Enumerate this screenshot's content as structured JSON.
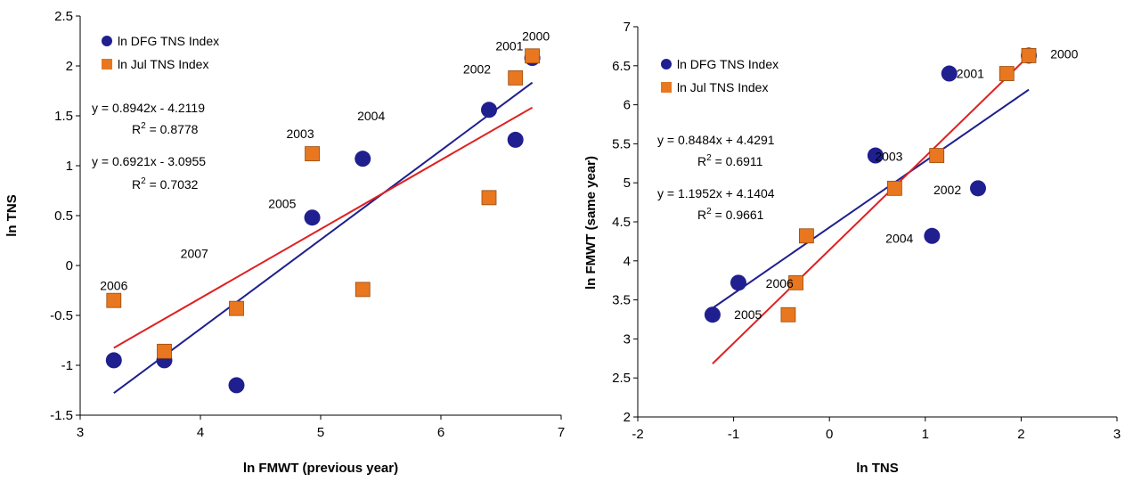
{
  "chart_data": [
    {
      "type": "scatter",
      "xlabel": "ln FMWT (previous year)",
      "ylabel": "ln TNS",
      "xlim": [
        3,
        7
      ],
      "ylim": [
        -1.5,
        2.5
      ],
      "xticks": [
        "3",
        "4",
        "5",
        "6",
        "7"
      ],
      "yticks": [
        "-1.5",
        "-1",
        "-0.5",
        "0",
        "0.5",
        "1",
        "1.5",
        "2",
        "2.5"
      ],
      "grid": false,
      "legend_position": "top-left",
      "series": [
        {
          "name": "ln DFG TNS Index",
          "marker": "circle",
          "color": "#1f1f8f",
          "points": [
            {
              "x": 3.28,
              "y": -0.95
            },
            {
              "x": 3.7,
              "y": -0.95
            },
            {
              "x": 4.3,
              "y": -1.2
            },
            {
              "x": 4.93,
              "y": 0.48
            },
            {
              "x": 5.35,
              "y": 1.07
            },
            {
              "x": 6.4,
              "y": 1.56
            },
            {
              "x": 6.62,
              "y": 1.26
            },
            {
              "x": 6.76,
              "y": 2.08
            }
          ],
          "trendline": {
            "slope": 0.8942,
            "intercept": -4.2119,
            "x_range": [
              3.28,
              6.76
            ],
            "color": "#1f1f8f"
          },
          "equation": "y = 0.8942x - 4.2119",
          "r2": "= 0.8778"
        },
        {
          "name": "ln Jul TNS Index",
          "marker": "square",
          "color": "#e8771f",
          "points": [
            {
              "x": 3.28,
              "y": -0.35
            },
            {
              "x": 3.7,
              "y": -0.86
            },
            {
              "x": 4.3,
              "y": -0.43
            },
            {
              "x": 4.93,
              "y": 1.12
            },
            {
              "x": 5.35,
              "y": -0.24
            },
            {
              "x": 6.4,
              "y": 0.68
            },
            {
              "x": 6.62,
              "y": 1.88
            },
            {
              "x": 6.76,
              "y": 2.1
            }
          ],
          "trendline": {
            "slope": 0.6921,
            "intercept": -3.0955,
            "x_range": [
              3.28,
              6.76
            ],
            "color": "#e02020"
          },
          "equation": "y = 0.6921x - 3.0955",
          "r2": "= 0.7032"
        }
      ],
      "annotations": [
        {
          "text": "2006",
          "x": 3.28,
          "y": -0.2
        },
        {
          "text": "2007",
          "x": 3.95,
          "y": 0.12
        },
        {
          "text": "2005",
          "x": 4.68,
          "y": 0.62
        },
        {
          "text": "2003",
          "x": 4.83,
          "y": 1.32
        },
        {
          "text": "2004",
          "x": 5.42,
          "y": 1.5
        },
        {
          "text": "2002",
          "x": 6.3,
          "y": 1.97
        },
        {
          "text": "2001",
          "x": 6.57,
          "y": 2.2
        },
        {
          "text": "2000",
          "x": 6.79,
          "y": 2.3
        }
      ]
    },
    {
      "type": "scatter",
      "xlabel": "ln TNS",
      "ylabel": "ln FMWT (same year)",
      "xlim": [
        -2,
        3
      ],
      "ylim": [
        2,
        7
      ],
      "xticks": [
        "-2",
        "-1",
        "0",
        "1",
        "2",
        "3"
      ],
      "yticks": [
        "2",
        "2.5",
        "3",
        "3.5",
        "4",
        "4.5",
        "5",
        "5.5",
        "6",
        "6.5",
        "7"
      ],
      "grid": false,
      "legend_position": "top-left",
      "series": [
        {
          "name": "ln DFG TNS Index",
          "marker": "circle",
          "color": "#1f1f8f",
          "points": [
            {
              "x": -1.22,
              "y": 3.31
            },
            {
              "x": -0.95,
              "y": 3.72
            },
            {
              "x": 0.48,
              "y": 5.35
            },
            {
              "x": 1.07,
              "y": 4.32
            },
            {
              "x": 1.25,
              "y": 6.4
            },
            {
              "x": 1.55,
              "y": 4.93
            },
            {
              "x": 2.08,
              "y": 6.63
            }
          ],
          "trendline": {
            "slope": 0.8484,
            "intercept": 4.4291,
            "x_range": [
              -1.22,
              2.08
            ],
            "color": "#1f1f8f"
          },
          "equation": "y = 0.8484x + 4.4291",
          "r2": "= 0.6911"
        },
        {
          "name": "ln Jul TNS Index",
          "marker": "square",
          "color": "#e8771f",
          "points": [
            {
              "x": -0.43,
              "y": 3.31
            },
            {
              "x": -0.35,
              "y": 3.72
            },
            {
              "x": -0.24,
              "y": 4.32
            },
            {
              "x": 0.68,
              "y": 4.93
            },
            {
              "x": 1.12,
              "y": 5.35
            },
            {
              "x": 1.85,
              "y": 6.4
            },
            {
              "x": 2.08,
              "y": 6.63
            }
          ],
          "trendline": {
            "slope": 1.1952,
            "intercept": 4.1404,
            "x_range": [
              -1.22,
              2.08
            ],
            "color": "#e02020"
          },
          "equation": "y = 1.1952x + 4.1404",
          "r2": "= 0.9661"
        }
      ],
      "annotations": [
        {
          "text": "2005",
          "x": -0.85,
          "y": 3.31
        },
        {
          "text": "2006",
          "x": -0.52,
          "y": 3.71
        },
        {
          "text": "2003",
          "x": 0.62,
          "y": 5.34
        },
        {
          "text": "2002",
          "x": 1.23,
          "y": 4.91
        },
        {
          "text": "2004",
          "x": 0.73,
          "y": 4.29
        },
        {
          "text": "2001",
          "x": 1.47,
          "y": 6.4
        },
        {
          "text": "2000",
          "x": 2.45,
          "y": 6.65
        }
      ]
    }
  ]
}
